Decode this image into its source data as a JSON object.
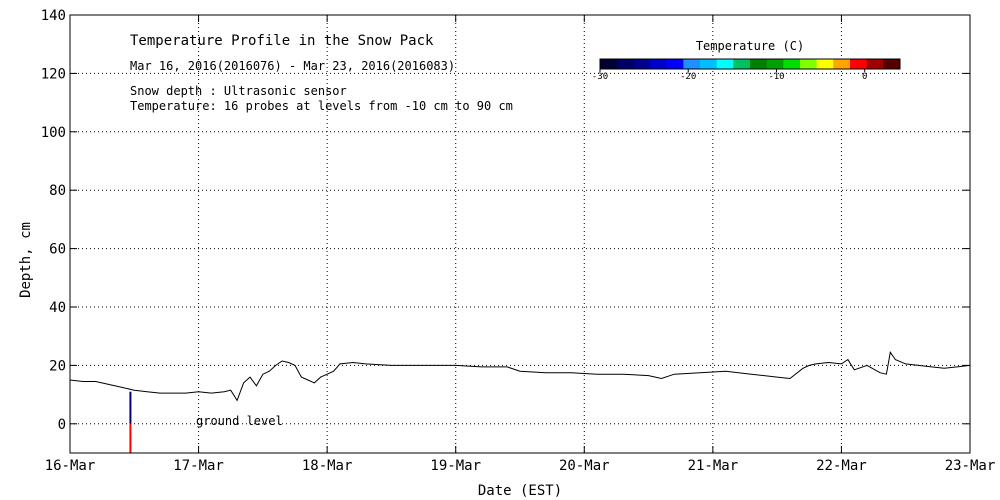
{
  "chart_data": {
    "type": "line",
    "title": "Temperature Profile in the Snow Pack",
    "subtitle": "Mar 16, 2016(2016076) - Mar 23, 2016(2016083)",
    "notes": [
      "Snow depth : Ultrasonic sensor",
      "Temperature: 16 probes at levels from -10 cm to 90 cm"
    ],
    "xlabel": "Date (EST)",
    "ylabel": "Depth, cm",
    "x_ticks": [
      "16-Mar",
      "17-Mar",
      "18-Mar",
      "19-Mar",
      "20-Mar",
      "21-Mar",
      "22-Mar",
      "23-Mar"
    ],
    "xlim": [
      0,
      7
    ],
    "y_ticks": [
      0,
      20,
      40,
      60,
      80,
      100,
      120,
      140
    ],
    "ylim": [
      -10,
      140
    ],
    "grid": true,
    "annotation": {
      "text": "ground level",
      "x": 0.98,
      "y": 1
    },
    "series": [
      {
        "color": "#000000",
        "x": [
          0,
          0.1,
          0.2,
          0.3,
          0.4,
          0.5,
          0.6,
          0.7,
          0.8,
          0.9,
          1.0,
          1.1,
          1.2,
          1.25,
          1.3,
          1.35,
          1.4,
          1.45,
          1.5,
          1.55,
          1.6,
          1.65,
          1.7,
          1.75,
          1.8,
          1.85,
          1.9,
          1.95,
          2.0,
          2.05,
          2.1,
          2.2,
          2.3,
          2.5,
          2.7,
          2.9,
          3.0,
          3.2,
          3.4,
          3.5,
          3.7,
          3.9,
          4.1,
          4.3,
          4.5,
          4.6,
          4.7,
          4.9,
          5.1,
          5.3,
          5.5,
          5.6,
          5.7,
          5.75,
          5.8,
          5.9,
          6.0,
          6.05,
          6.1,
          6.2,
          6.3,
          6.35,
          6.38,
          6.42,
          6.5,
          6.6,
          6.7,
          6.8,
          6.9,
          7.0
        ],
        "values": [
          15,
          14.5,
          14.5,
          13.5,
          12.5,
          11.5,
          11,
          10.5,
          10.5,
          10.5,
          11,
          10.5,
          11,
          11.5,
          8,
          14,
          16,
          13,
          17,
          18,
          20,
          21.5,
          21,
          20,
          16,
          15,
          14,
          16,
          17,
          18,
          20.5,
          21,
          20.5,
          20,
          20,
          20,
          20,
          19.5,
          19.5,
          18,
          17.5,
          17.5,
          17,
          17,
          16.5,
          15.5,
          17,
          17.5,
          18,
          17,
          16,
          15.5,
          19,
          20,
          20.5,
          21,
          20.5,
          22,
          18.5,
          20,
          17.5,
          17,
          24.5,
          22,
          20.5,
          20,
          19.5,
          19,
          19.5,
          20
        ]
      }
    ],
    "colorbar": {
      "label": "Temperature (C)",
      "tick_labels": [
        "-30",
        "-20",
        "-10",
        "0"
      ],
      "tick_values": [
        -30,
        -20,
        -10,
        0
      ],
      "range": [
        -30,
        4
      ],
      "colors": [
        "#000033",
        "#000066",
        "#00008b",
        "#0000cd",
        "#0000ff",
        "#1e90ff",
        "#00bfff",
        "#00ffff",
        "#00c060",
        "#008000",
        "#00a000",
        "#00dd00",
        "#80ff00",
        "#ffff00",
        "#ffa500",
        "#ff0000",
        "#a00000",
        "#550000"
      ]
    },
    "probe_marker": {
      "x": 0.47,
      "top": 11,
      "split": 0,
      "bottom": -10,
      "colors": [
        "#000080",
        "#ff0000"
      ]
    }
  }
}
